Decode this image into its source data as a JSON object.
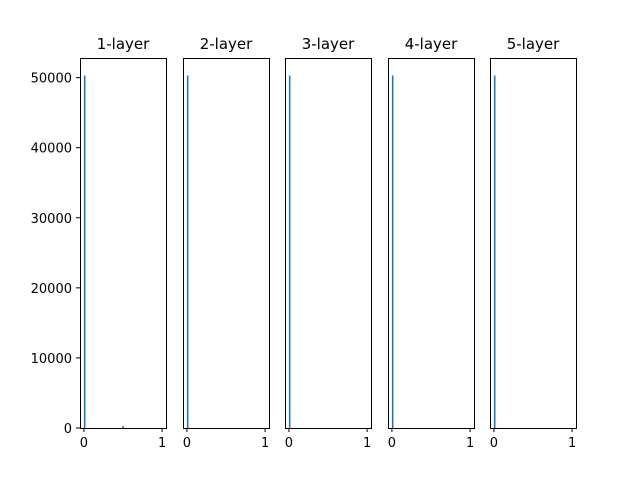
{
  "chart_data": [
    {
      "type": "bar",
      "title": "1-layer",
      "xlim": [
        -0.05,
        1.05
      ],
      "ylim": [
        0,
        52800
      ],
      "xticks": [
        "0",
        "1"
      ],
      "yticks": [
        "0",
        "10000",
        "20000",
        "30000",
        "40000",
        "50000"
      ],
      "bins": [
        {
          "x": 0.01,
          "height": 50300
        },
        {
          "x": 0.5,
          "height": 300
        }
      ],
      "color": "#1f77b4"
    },
    {
      "type": "bar",
      "title": "2-layer",
      "xlim": [
        -0.05,
        1.05
      ],
      "ylim": [
        0,
        52800
      ],
      "xticks": [
        "0",
        "1"
      ],
      "bins": [
        {
          "x": 0.01,
          "height": 50300
        }
      ],
      "color": "#1f77b4"
    },
    {
      "type": "bar",
      "title": "3-layer",
      "xlim": [
        -0.05,
        1.05
      ],
      "ylim": [
        0,
        52800
      ],
      "xticks": [
        "0",
        "1"
      ],
      "bins": [
        {
          "x": 0.01,
          "height": 50300
        }
      ],
      "color": "#1f77b4"
    },
    {
      "type": "bar",
      "title": "4-layer",
      "xlim": [
        -0.05,
        1.05
      ],
      "ylim": [
        0,
        52800
      ],
      "xticks": [
        "0",
        "1"
      ],
      "bins": [
        {
          "x": 0.01,
          "height": 50300
        }
      ],
      "color": "#1f77b4"
    },
    {
      "type": "bar",
      "title": "5-layer",
      "xlim": [
        -0.05,
        1.05
      ],
      "ylim": [
        0,
        52800
      ],
      "xticks": [
        "0",
        "1"
      ],
      "bins": [
        {
          "x": 0.01,
          "height": 50300
        }
      ],
      "color": "#1f77b4"
    }
  ]
}
